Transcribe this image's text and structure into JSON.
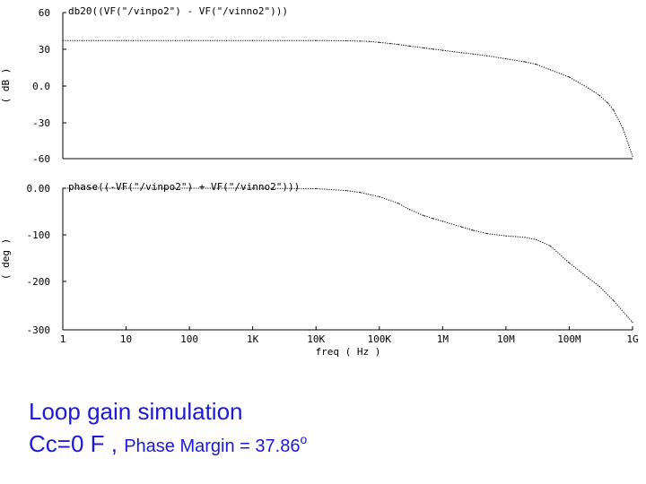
{
  "charts": [
    {
      "type": "line",
      "title": "db20((VF(\"/vinpo2\") - VF(\"/vinno2\")))",
      "ylabel": "( dB )",
      "yticks": [
        "60",
        "30",
        "0.0",
        "-30",
        "-60"
      ],
      "ylim": [
        -60,
        60
      ],
      "x": [
        1,
        10,
        100,
        1000,
        10000,
        30000,
        50000,
        70000,
        100000,
        150000,
        200000,
        300000,
        500000,
        700000,
        1000000,
        2000000,
        3000000,
        5000000,
        10000000,
        20000000,
        30000000,
        50000000,
        100000000,
        200000000,
        300000000,
        400000000,
        500000000,
        700000000,
        1000000000
      ],
      "y": [
        37,
        37,
        37,
        37,
        37,
        36.8,
        36.5,
        36.2,
        35.5,
        34.5,
        33.8,
        32.5,
        31,
        30,
        29,
        27,
        26,
        24.5,
        22,
        19.5,
        17.5,
        13,
        7,
        -2,
        -8,
        -14,
        -20,
        -35,
        -58
      ]
    },
    {
      "type": "line",
      "title": "phase((-VF(\"/vinpo2\") + VF(\"/vinno2\")))",
      "ylabel": "( deg )",
      "yticks": [
        "0.00",
        "-100",
        "-200",
        "-300"
      ],
      "ylim": [
        -300,
        0
      ],
      "x": [
        1,
        10,
        100,
        1000,
        10000,
        30000,
        50000,
        100000,
        200000,
        300000,
        500000,
        700000,
        1000000,
        2000000,
        3000000,
        5000000,
        10000000,
        20000000,
        30000000,
        50000000,
        100000000,
        200000000,
        300000000,
        500000000,
        1000000000
      ],
      "y": [
        0,
        0,
        0,
        0,
        -1,
        -5,
        -9,
        -18,
        -32,
        -45,
        -58,
        -64,
        -70,
        -82,
        -89,
        -96,
        -101,
        -104,
        -109,
        -122,
        -158,
        -190,
        -208,
        -238,
        -284
      ]
    }
  ],
  "x_axis": {
    "xlabel": "freq ( Hz )",
    "xticklabels": [
      "1",
      "10",
      "100",
      "1K",
      "10K",
      "100K",
      "1M",
      "10M",
      "100M",
      "1G"
    ],
    "scale": "log",
    "xlim": [
      1,
      1000000000
    ]
  },
  "captions": {
    "line1": "Loop gain simulation",
    "line2_main": "Cc=0 F ,",
    "line2_small": "Phase Margin = 37.86",
    "line2_sup": "o"
  },
  "colors": {
    "caption": "#1a1ad8",
    "plot": "#000000"
  }
}
